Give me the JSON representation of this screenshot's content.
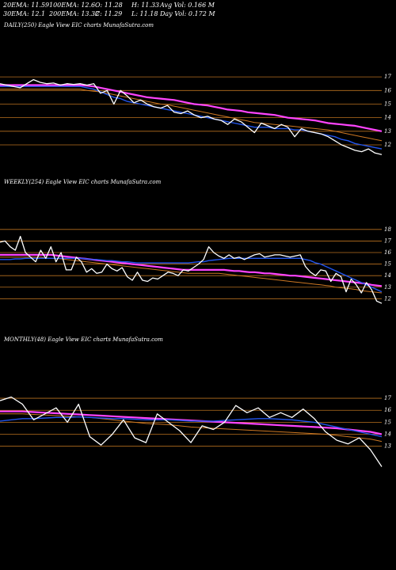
{
  "header": {
    "ema20": "20EMA: 11.59",
    "ema100": "100EMA: 12.6",
    "open": "O: 11.28",
    "high": "H: 11.33",
    "avg_vol": "Avg Vol: 0.166  M",
    "ema30": "30EMA: 12.1",
    "ema200": "200EMA: 13.32",
    "close": "C: 11.29",
    "low": "L: 11.18",
    "day_vol": "Day Vol: 0.172  M"
  },
  "colors": {
    "background": "#000000",
    "price": "#ffffff",
    "ema_fast": "#2255ee",
    "ema_slow": "#ff44ff",
    "ema_mid": "#cc7722",
    "grid": "#b8711f"
  },
  "chart_data": [
    {
      "type": "line",
      "title": "DAILY(250) Eagle  View  EIC charts MunafaSutra.com",
      "yticks": [
        17,
        16,
        15,
        14,
        13,
        12
      ],
      "ylim": [
        11.3,
        17.3
      ],
      "series": [
        {
          "role": "price",
          "values": [
            16.5,
            16.4,
            16.3,
            16.2,
            16.5,
            16.8,
            16.6,
            16.5,
            16.55,
            16.4,
            16.5,
            16.45,
            16.5,
            16.4,
            16.5,
            15.8,
            16.0,
            15.0,
            16.0,
            15.6,
            15.1,
            15.3,
            15.0,
            14.8,
            14.7,
            14.9,
            14.4,
            14.3,
            14.5,
            14.2,
            14.0,
            14.1,
            13.9,
            13.8,
            13.5,
            13.9,
            13.7,
            13.3,
            12.9,
            13.6,
            13.4,
            13.2,
            13.5,
            13.3,
            12.6,
            13.2,
            13.0,
            12.9,
            12.8,
            12.6,
            12.3,
            12.0,
            11.8,
            11.6,
            11.5,
            11.7,
            11.4,
            11.29
          ]
        },
        {
          "role": "ema_fast",
          "values": [
            16.3,
            16.3,
            16.3,
            16.3,
            16.3,
            16.3,
            16.3,
            16.3,
            16.3,
            16.3,
            16.3,
            16.3,
            16.3,
            16.2,
            16.1,
            15.9,
            15.7,
            15.5,
            15.4,
            15.2,
            15.1,
            15.0,
            14.9,
            14.8,
            14.7,
            14.6,
            14.5,
            14.4,
            14.3,
            14.2,
            14.1,
            14.0,
            13.9,
            13.8,
            13.7,
            13.6,
            13.5,
            13.4,
            13.3,
            13.3,
            13.3,
            13.2,
            13.2,
            13.2,
            13.1,
            13.1,
            13.0,
            12.9,
            12.8,
            12.7,
            12.6,
            12.4,
            12.3,
            12.1,
            12.0,
            11.9,
            11.8,
            11.7
          ]
        },
        {
          "role": "ema_mid",
          "values": [
            16.1,
            16.1,
            16.1,
            16.1,
            16.1,
            16.1,
            16.1,
            16.1,
            16.1,
            16.1,
            16.1,
            16.1,
            16.1,
            16.0,
            15.95,
            15.9,
            15.8,
            15.7,
            15.6,
            15.5,
            15.4,
            15.3,
            15.2,
            15.1,
            15.0,
            14.95,
            14.85,
            14.75,
            14.65,
            14.55,
            14.45,
            14.35,
            14.25,
            14.15,
            14.05,
            13.95,
            13.85,
            13.75,
            13.65,
            13.6,
            13.55,
            13.5,
            13.45,
            13.4,
            13.35,
            13.3,
            13.25,
            13.2,
            13.15,
            13.1,
            13.0,
            12.9,
            12.8,
            12.7,
            12.6,
            12.5,
            12.4,
            12.3
          ]
        },
        {
          "role": "ema_slow",
          "values": [
            16.4,
            16.4,
            16.4,
            16.4,
            16.4,
            16.4,
            16.4,
            16.4,
            16.4,
            16.4,
            16.4,
            16.4,
            16.4,
            16.35,
            16.3,
            16.2,
            16.1,
            16.0,
            15.9,
            15.8,
            15.7,
            15.6,
            15.5,
            15.45,
            15.4,
            15.35,
            15.3,
            15.2,
            15.1,
            15.0,
            14.95,
            14.9,
            14.8,
            14.7,
            14.6,
            14.55,
            14.5,
            14.4,
            14.35,
            14.3,
            14.25,
            14.2,
            14.1,
            14.0,
            13.95,
            13.9,
            13.85,
            13.8,
            13.7,
            13.6,
            13.55,
            13.5,
            13.45,
            13.4,
            13.3,
            13.2,
            13.1,
            13.0
          ]
        }
      ]
    },
    {
      "type": "line",
      "title": "WEEKLY(254) Eagle  View  EIC charts MunafaSutra.com",
      "yticks": [
        18,
        17,
        16,
        15,
        14,
        13,
        12
      ],
      "ylim": [
        11.2,
        18.4
      ],
      "series": [
        {
          "role": "price",
          "values": [
            16.9,
            17.0,
            16.5,
            16.2,
            17.4,
            16.0,
            15.6,
            15.2,
            16.2,
            15.5,
            16.5,
            15.2,
            16.0,
            14.5,
            14.5,
            15.6,
            15.2,
            14.3,
            14.6,
            14.2,
            14.3,
            15.0,
            14.6,
            14.4,
            14.7,
            13.9,
            13.6,
            14.3,
            13.6,
            13.5,
            13.8,
            13.7,
            14.0,
            14.3,
            14.2,
            14.0,
            14.5,
            14.4,
            14.7,
            15.0,
            15.4,
            16.5,
            16.0,
            15.7,
            15.5,
            15.8,
            15.5,
            15.6,
            15.4,
            15.6,
            15.8,
            15.9,
            15.6,
            15.7,
            15.8,
            15.8,
            15.7,
            15.6,
            15.7,
            15.8,
            14.8,
            14.3,
            14.0,
            14.5,
            14.4,
            13.5,
            14.2,
            13.9,
            12.6,
            13.7,
            13.2,
            12.5,
            13.4,
            12.8,
            11.8,
            11.6
          ]
        },
        {
          "role": "ema_fast",
          "values": [
            15.4,
            15.4,
            15.4,
            15.45,
            15.45,
            15.5,
            15.5,
            15.5,
            15.5,
            15.5,
            15.5,
            15.5,
            15.5,
            15.5,
            15.5,
            15.5,
            15.5,
            15.45,
            15.4,
            15.4,
            15.35,
            15.3,
            15.3,
            15.25,
            15.2,
            15.2,
            15.15,
            15.1,
            15.1,
            15.1,
            15.1,
            15.1,
            15.1,
            15.1,
            15.1,
            15.1,
            15.1,
            15.1,
            15.15,
            15.2,
            15.2,
            15.3,
            15.35,
            15.4,
            15.45,
            15.5,
            15.5,
            15.5,
            15.5,
            15.5,
            15.5,
            15.5,
            15.5,
            15.5,
            15.5,
            15.5,
            15.5,
            15.5,
            15.5,
            15.5,
            15.4,
            15.3,
            15.1,
            15.0,
            14.8,
            14.6,
            14.4,
            14.2,
            14.0,
            13.8,
            13.6,
            13.4,
            13.2,
            13.0,
            12.8,
            12.6
          ]
        },
        {
          "role": "ema_mid",
          "values": [
            15.6,
            15.6,
            15.6,
            15.6,
            15.6,
            15.6,
            15.6,
            15.6,
            15.6,
            15.55,
            15.5,
            15.5,
            15.45,
            15.4,
            15.35,
            15.3,
            15.25,
            15.2,
            15.15,
            15.1,
            15.05,
            15.0,
            14.95,
            14.9,
            14.85,
            14.8,
            14.75,
            14.7,
            14.65,
            14.6,
            14.55,
            14.5,
            14.45,
            14.4,
            14.35,
            14.3,
            14.25,
            14.2,
            14.2,
            14.2,
            14.2,
            14.2,
            14.2,
            14.2,
            14.15,
            14.1,
            14.05,
            14.0,
            13.95,
            13.9,
            13.85,
            13.8,
            13.75,
            13.7,
            13.65,
            13.6,
            13.55,
            13.5,
            13.45,
            13.4,
            13.35,
            13.3,
            13.25,
            13.2,
            13.15,
            13.1,
            13.0,
            12.95,
            12.9,
            12.85,
            12.8,
            12.7,
            12.65,
            12.6,
            12.55,
            12.5
          ]
        },
        {
          "role": "ema_slow",
          "values": [
            15.8,
            15.8,
            15.8,
            15.8,
            15.8,
            15.8,
            15.8,
            15.8,
            15.8,
            15.8,
            15.8,
            15.75,
            15.7,
            15.65,
            15.6,
            15.55,
            15.5,
            15.45,
            15.4,
            15.35,
            15.3,
            15.25,
            15.2,
            15.15,
            15.1,
            15.05,
            15.0,
            14.95,
            14.9,
            14.85,
            14.8,
            14.75,
            14.7,
            14.65,
            14.6,
            14.55,
            14.5,
            14.5,
            14.5,
            14.5,
            14.5,
            14.5,
            14.5,
            14.5,
            14.5,
            14.45,
            14.4,
            14.4,
            14.35,
            14.3,
            14.3,
            14.25,
            14.2,
            14.2,
            14.15,
            14.1,
            14.05,
            14.0,
            14.0,
            13.95,
            13.9,
            13.85,
            13.8,
            13.75,
            13.7,
            13.65,
            13.6,
            13.55,
            13.5,
            13.45,
            13.4,
            13.35,
            13.3,
            13.2,
            13.15,
            13.1
          ]
        }
      ]
    },
    {
      "type": "line",
      "title": "MONTHLY(48) Eagle  View  EIC charts MunafaSutra.com",
      "yticks": [
        17,
        16,
        15,
        14,
        13
      ],
      "ylim": [
        11.0,
        17.4
      ],
      "series": [
        {
          "role": "price",
          "values": [
            16.8,
            17.1,
            16.5,
            15.2,
            15.7,
            16.2,
            15.0,
            16.5,
            13.8,
            13.1,
            14.0,
            15.2,
            13.7,
            13.3,
            15.7,
            15.0,
            14.3,
            13.3,
            14.7,
            14.4,
            15.0,
            16.4,
            15.8,
            16.2,
            15.4,
            15.8,
            15.4,
            16.1,
            15.3,
            14.2,
            13.5,
            13.2,
            13.7,
            12.7,
            11.3
          ]
        },
        {
          "role": "ema_fast",
          "values": [
            15.1,
            15.2,
            15.3,
            15.3,
            15.35,
            15.4,
            15.4,
            15.45,
            15.4,
            15.35,
            15.3,
            15.3,
            15.25,
            15.2,
            15.2,
            15.2,
            15.15,
            15.1,
            15.1,
            15.1,
            15.15,
            15.2,
            15.25,
            15.3,
            15.3,
            15.25,
            15.2,
            15.1,
            15.0,
            14.8,
            14.6,
            14.4,
            14.2,
            14.0,
            13.8
          ]
        },
        {
          "role": "ema_mid",
          "values": [
            15.7,
            15.7,
            15.7,
            15.65,
            15.6,
            15.55,
            15.5,
            15.45,
            15.4,
            15.3,
            15.2,
            15.1,
            15.0,
            14.9,
            14.85,
            14.8,
            14.7,
            14.6,
            14.55,
            14.5,
            14.45,
            14.4,
            14.35,
            14.3,
            14.25,
            14.2,
            14.15,
            14.1,
            14.05,
            14.0,
            13.9,
            13.8,
            13.7,
            13.6,
            13.4
          ]
        },
        {
          "role": "ema_slow",
          "values": [
            15.9,
            15.9,
            15.9,
            15.85,
            15.8,
            15.75,
            15.7,
            15.65,
            15.6,
            15.55,
            15.5,
            15.45,
            15.4,
            15.35,
            15.3,
            15.25,
            15.2,
            15.15,
            15.1,
            15.05,
            15.0,
            14.95,
            14.9,
            14.85,
            14.8,
            14.75,
            14.7,
            14.65,
            14.6,
            14.55,
            14.5,
            14.4,
            14.3,
            14.2,
            14.0
          ]
        }
      ]
    }
  ]
}
